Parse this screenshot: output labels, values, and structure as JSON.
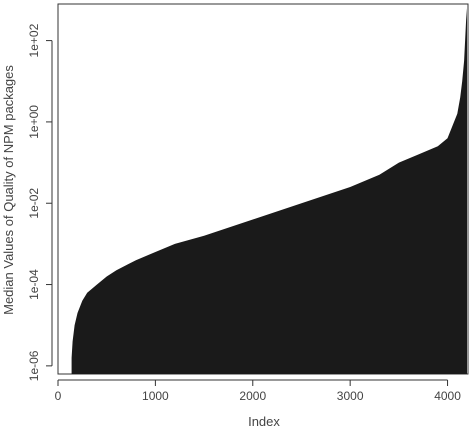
{
  "chart_data": {
    "type": "area",
    "title": "",
    "xlabel": "Index",
    "ylabel": "Median Values of Quality of NPM packages",
    "xlim": [
      0,
      4210
    ],
    "ylim_log10": [
      -6.2,
      2.9
    ],
    "y_scale": "log",
    "x_ticks": [
      0,
      1000,
      2000,
      3000,
      4000
    ],
    "x_tick_labels": [
      "0",
      "1000",
      "2000",
      "3000",
      "4000"
    ],
    "y_ticks": [
      1e-06,
      0.0001,
      0.01,
      1,
      100
    ],
    "y_tick_labels": [
      "1e-06",
      "1e-04",
      "1e-02",
      "1e+00",
      "1e+02"
    ],
    "fill_color": "#1a1a1a",
    "grid": false,
    "legend": "none",
    "series": [
      {
        "x": [
          140,
          150,
          170,
          200,
          250,
          300,
          400,
          500,
          600,
          800,
          1000,
          1200,
          1500,
          2000,
          2500,
          3000,
          3300,
          3500,
          3700,
          3900,
          4000,
          4050,
          4100,
          4130,
          4150,
          4170,
          4180,
          4190,
          4200
        ],
        "y": [
          1.58e-06,
          4e-06,
          1e-05,
          2e-05,
          3.98e-05,
          6.31e-05,
          0.0001,
          0.000158,
          0.000224,
          0.000398,
          0.000631,
          0.001,
          0.00158,
          0.00398,
          0.01,
          0.0251,
          0.0501,
          0.1,
          0.158,
          0.251,
          0.398,
          0.794,
          1.58,
          3.98,
          10,
          31.6,
          100,
          316,
          631
        ]
      }
    ]
  }
}
